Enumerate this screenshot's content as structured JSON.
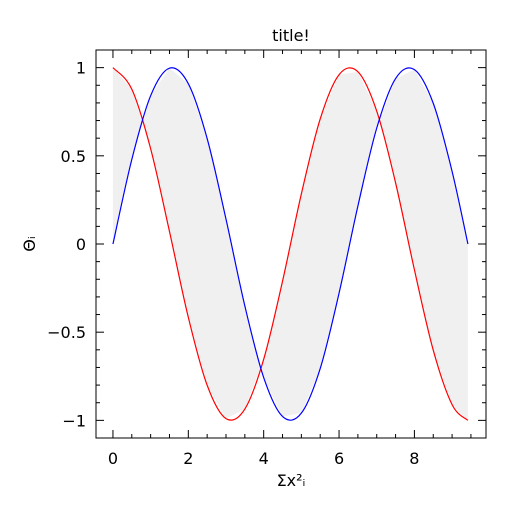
{
  "chart_data": {
    "type": "line",
    "title": "title!",
    "xlabel": "Σx²ᵢ",
    "ylabel": "Θᵢ",
    "xlim": [
      -0.45,
      9.9
    ],
    "ylim": [
      -1.1,
      1.1
    ],
    "xticks": [
      0,
      2,
      4,
      6,
      8
    ],
    "xtick_labels": [
      "0",
      "2",
      "4",
      "6",
      "8"
    ],
    "yticks": [
      -1,
      -0.5,
      0,
      0.5,
      1
    ],
    "ytick_labels": [
      "−1",
      "−0.5",
      "0",
      "0.5",
      "1"
    ],
    "grid": false,
    "fill_between": {
      "between": [
        "sin",
        "cos"
      ],
      "color": "#f0f0f0"
    },
    "series": [
      {
        "color": "#ff0000",
        "x": [
          0,
          0.5,
          1,
          1.5,
          2,
          2.5,
          3,
          3.5,
          4,
          4.5,
          5,
          5.5,
          6,
          6.5,
          7,
          7.5,
          8,
          8.5,
          9,
          9.42
        ],
        "y": [
          1,
          0.878,
          0.54,
          0.071,
          -0.416,
          -0.801,
          -0.99,
          -0.936,
          -0.654,
          -0.211,
          0.284,
          0.709,
          0.96,
          0.977,
          0.754,
          0.347,
          -0.146,
          -0.602,
          -0.911,
          -1
        ]
      },
      {
        "color": "#0000ff",
        "x": [
          0,
          0.5,
          1,
          1.5,
          2,
          2.5,
          3,
          3.5,
          4,
          4.5,
          5,
          5.5,
          6,
          6.5,
          7,
          7.5,
          8,
          8.5,
          9,
          9.42
        ],
        "y": [
          0,
          0.479,
          0.841,
          0.997,
          0.909,
          0.598,
          0.141,
          -0.351,
          -0.757,
          -0.978,
          -0.959,
          -0.706,
          -0.279,
          0.215,
          0.657,
          0.938,
          0.989,
          0.798,
          0.412,
          0
        ]
      }
    ]
  }
}
